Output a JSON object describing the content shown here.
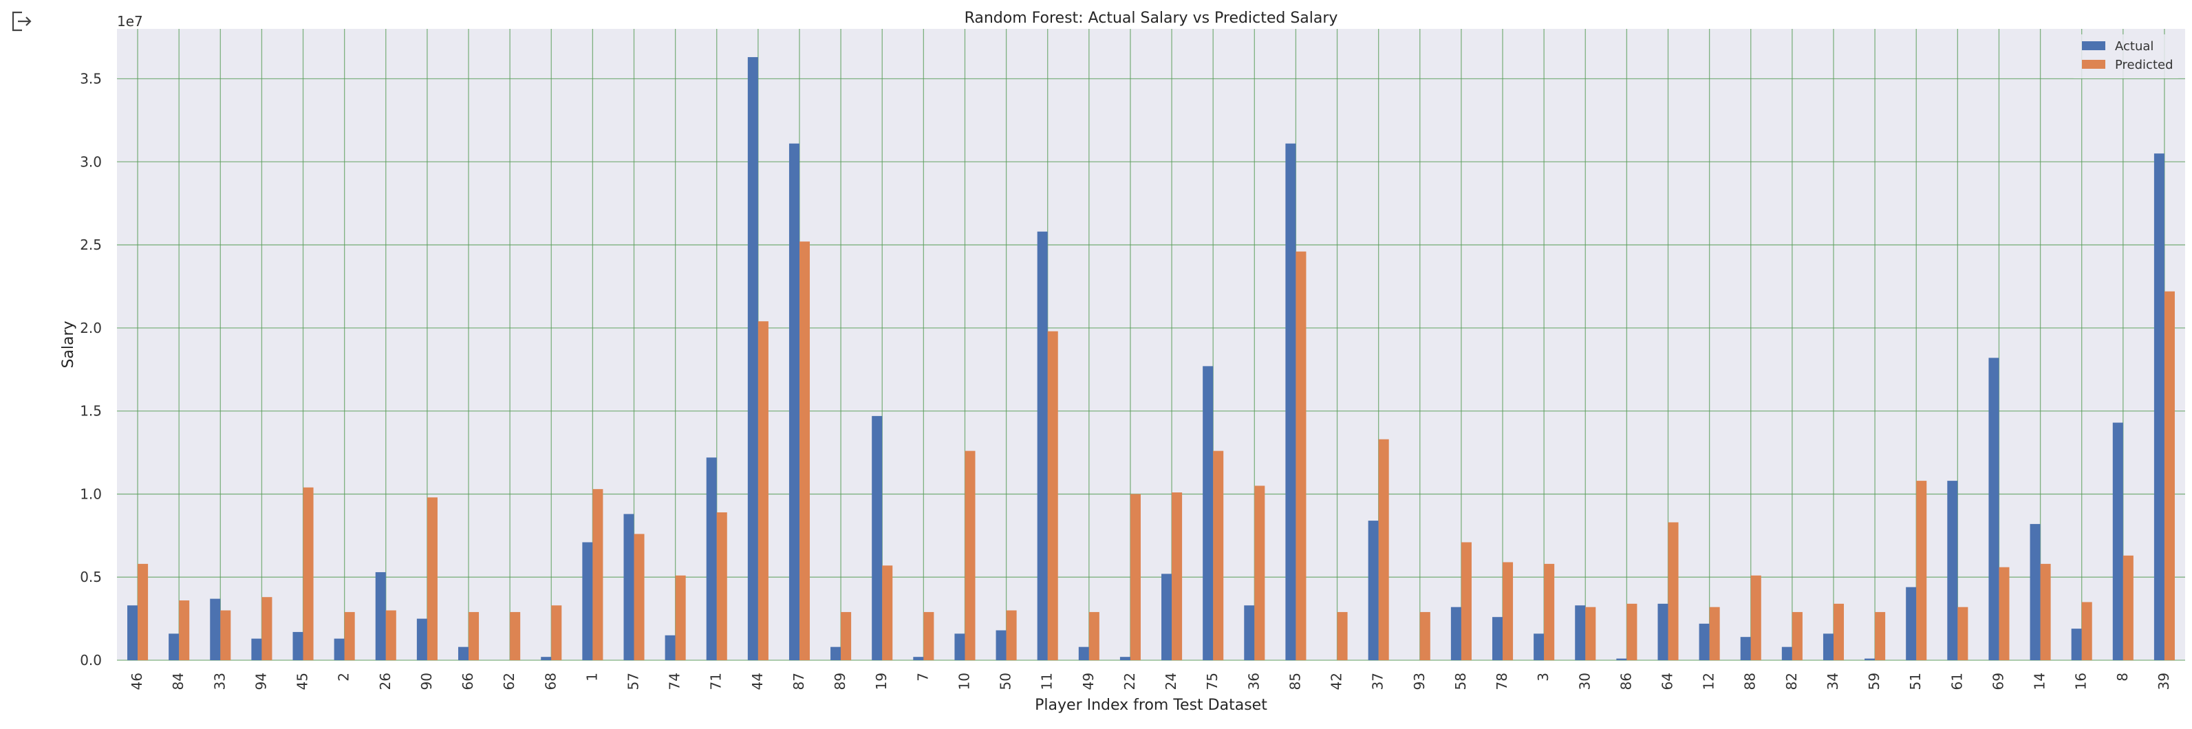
{
  "cell": {
    "output_icon": "output-arrow-icon"
  },
  "chart_data": {
    "type": "bar",
    "title": "Random Forest: Actual Salary vs Predicted Salary",
    "xlabel": "Player Index from Test Dataset",
    "ylabel": "Salary",
    "y_offset_label": "1e7",
    "ylim": [
      0,
      38000000
    ],
    "yticks": [
      0,
      5000000,
      10000000,
      15000000,
      20000000,
      25000000,
      30000000,
      35000000
    ],
    "ytick_labels": [
      "0.0",
      "0.5",
      "1.0",
      "1.5",
      "2.0",
      "2.5",
      "3.0",
      "3.5"
    ],
    "grid": true,
    "legend_position": "top-right",
    "categories": [
      "46",
      "84",
      "33",
      "94",
      "45",
      "2",
      "26",
      "90",
      "66",
      "62",
      "68",
      "1",
      "57",
      "74",
      "71",
      "44",
      "87",
      "89",
      "19",
      "7",
      "10",
      "50",
      "11",
      "49",
      "22",
      "24",
      "75",
      "36",
      "85",
      "42",
      "37",
      "93",
      "58",
      "78",
      "3",
      "30",
      "86",
      "64",
      "12",
      "88",
      "82",
      "34",
      "59",
      "51",
      "61",
      "69",
      "14",
      "16",
      "8",
      "39"
    ],
    "series": [
      {
        "name": "Actual",
        "color": "#4c72b0",
        "values": [
          3300000,
          1600000,
          3700000,
          1300000,
          1700000,
          1300000,
          5300000,
          2500000,
          800000,
          0,
          200000,
          7100000,
          8800000,
          1500000,
          12200000,
          36300000,
          31100000,
          800000,
          14700000,
          200000,
          1600000,
          1800000,
          25800000,
          800000,
          200000,
          5200000,
          17700000,
          3300000,
          31100000,
          0,
          8400000,
          0,
          3200000,
          2600000,
          1600000,
          3300000,
          100000,
          3400000,
          2200000,
          1400000,
          800000,
          1600000,
          100000,
          4400000,
          10800000,
          18200000,
          8200000,
          1900000,
          14300000,
          30500000
        ]
      },
      {
        "name": "Predicted",
        "color": "#dd8452",
        "values": [
          5800000,
          3600000,
          3000000,
          3800000,
          10400000,
          2900000,
          3000000,
          9800000,
          2900000,
          2900000,
          3300000,
          10300000,
          7600000,
          5100000,
          8900000,
          20400000,
          25200000,
          2900000,
          5700000,
          2900000,
          12600000,
          3000000,
          19800000,
          2900000,
          10000000,
          10100000,
          12600000,
          10500000,
          24600000,
          2900000,
          13300000,
          2900000,
          7100000,
          5900000,
          5800000,
          3200000,
          3400000,
          8300000,
          3200000,
          5100000,
          2900000,
          3400000,
          2900000,
          10800000,
          3200000,
          5600000,
          5800000,
          3500000,
          6300000,
          22200000
        ]
      }
    ]
  }
}
